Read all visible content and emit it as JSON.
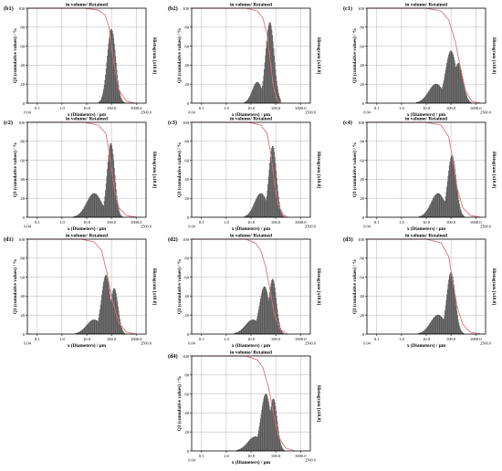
{
  "chart_data": [
    {
      "id": "b1",
      "panel_label": "(b1)",
      "type": "bar",
      "title": "in volume/ Retained",
      "xlabel": "x (Diameters) / µm",
      "ylabel": "Q3 (cumulative values) / %",
      "y2label": "Histogram [x10.0]",
      "x_scale": "log",
      "xlim": [
        0.04,
        2500
      ],
      "ylim": [
        0,
        100
      ],
      "x_ticks": [
        "0.1",
        "1.0",
        "10.0",
        "100.0",
        "1000.0"
      ],
      "x_min_label": "0.04",
      "x_max_label": "2500.0",
      "y_ticks": [
        "0",
        "20",
        "40",
        "60",
        "80",
        "100"
      ],
      "grid": true,
      "histogram": {
        "peaks": [
          {
            "x": 100,
            "h": 78,
            "w": 0.17
          }
        ],
        "xmin": 1.5,
        "xmax": 900
      },
      "cumulative_curve": {
        "points": [
          [
            0.04,
            100
          ],
          [
            8,
            100
          ],
          [
            30,
            98
          ],
          [
            55,
            93
          ],
          [
            80,
            80
          ],
          [
            120,
            45
          ],
          [
            200,
            14
          ],
          [
            400,
            2
          ],
          [
            900,
            0
          ]
        ]
      }
    },
    {
      "id": "b2",
      "panel_label": "(b2)",
      "type": "bar",
      "title": "in volume/ Retained",
      "xlabel": "x (Diameters) / µm",
      "ylabel": "Q3 (cumulative values) / %",
      "y2label": "Histogram [x10.0]",
      "x_scale": "log",
      "xlim": [
        0.04,
        2500
      ],
      "ylim": [
        0,
        100
      ],
      "x_ticks": [
        "0.1",
        "1.0",
        "10.0",
        "100.0",
        "1000.0"
      ],
      "x_min_label": "0.04",
      "x_max_label": "2500.0",
      "y_ticks": [
        "0",
        "20",
        "40",
        "60",
        "80",
        "100"
      ],
      "grid": true,
      "histogram": {
        "peaks": [
          {
            "x": 58,
            "h": 85,
            "w": 0.17
          },
          {
            "x": 18,
            "h": 22,
            "w": 0.2
          }
        ],
        "xmin": 1.5,
        "xmax": 150
      },
      "cumulative_curve": {
        "points": [
          [
            0.04,
            100
          ],
          [
            6,
            100
          ],
          [
            18,
            97
          ],
          [
            30,
            90
          ],
          [
            45,
            72
          ],
          [
            60,
            45
          ],
          [
            80,
            18
          ],
          [
            110,
            4
          ],
          [
            150,
            0
          ]
        ]
      }
    },
    {
      "id": "c1",
      "panel_label": "(c1)",
      "type": "bar",
      "title": "in volume/ Retained",
      "xlabel": "x (Diameters) / µm",
      "ylabel": "Q3 (cumulative values) / %",
      "y2label": "Histogram [x10.0]",
      "x_scale": "log",
      "xlim": [
        0.04,
        2500
      ],
      "ylim": [
        0,
        100
      ],
      "x_ticks": [
        "0.1",
        "1.0",
        "10.0",
        "100.0",
        "1000.0"
      ],
      "x_min_label": "0.04",
      "x_max_label": "2500.0",
      "y_ticks": [
        "0",
        "20",
        "40",
        "60",
        "80",
        "100"
      ],
      "grid": true,
      "histogram": {
        "peaks": [
          {
            "x": 100,
            "h": 55,
            "w": 0.22
          },
          {
            "x": 200,
            "h": 42,
            "w": 0.18
          },
          {
            "x": 25,
            "h": 20,
            "w": 0.3
          }
        ],
        "xmin": 2,
        "xmax": 1500
      },
      "cumulative_curve": {
        "points": [
          [
            0.04,
            100
          ],
          [
            10,
            100
          ],
          [
            40,
            97
          ],
          [
            80,
            88
          ],
          [
            150,
            65
          ],
          [
            250,
            35
          ],
          [
            400,
            12
          ],
          [
            700,
            2
          ],
          [
            1500,
            0
          ]
        ]
      }
    },
    {
      "id": "c2",
      "panel_label": "(c2)",
      "type": "bar",
      "title": "in volume/ Retained",
      "xlabel": "x (Diameters) / µm",
      "ylabel": "Q3 (cumulative values) / %",
      "y2label": "Histogram [x10.0]",
      "x_scale": "log",
      "xlim": [
        0.04,
        2500
      ],
      "ylim": [
        0,
        100
      ],
      "x_ticks": [
        "0.1",
        "1.0",
        "10.0",
        "100.0",
        "1000.0"
      ],
      "x_min_label": "0.04",
      "x_max_label": "2500.0",
      "y_ticks": [
        "0",
        "20",
        "40",
        "60",
        "80",
        "100"
      ],
      "grid": true,
      "histogram": {
        "peaks": [
          {
            "x": 95,
            "h": 78,
            "w": 0.15
          },
          {
            "x": 20,
            "h": 25,
            "w": 0.3
          }
        ],
        "xmin": 1.5,
        "xmax": 1200
      },
      "cumulative_curve": {
        "points": [
          [
            0.04,
            100
          ],
          [
            8,
            100
          ],
          [
            30,
            97
          ],
          [
            60,
            88
          ],
          [
            90,
            62
          ],
          [
            130,
            30
          ],
          [
            200,
            10
          ],
          [
            400,
            2
          ],
          [
            1000,
            0
          ]
        ]
      }
    },
    {
      "id": "c3",
      "panel_label": "(c3)",
      "type": "bar",
      "title": "in volume/ Retained",
      "xlabel": "x (Diameters) / µm",
      "ylabel": "Q3 (cumulative values) / %",
      "y2label": "Histogram [x10.0]",
      "x_scale": "log",
      "xlim": [
        0.04,
        2500
      ],
      "ylim": [
        0,
        100
      ],
      "x_ticks": [
        "0.1",
        "1.0",
        "10.0",
        "100.0",
        "1000.0"
      ],
      "x_min_label": "0.04",
      "x_max_label": "2500.0",
      "y_ticks": [
        "0",
        "20",
        "40",
        "60",
        "80",
        "100"
      ],
      "grid": true,
      "histogram": {
        "peaks": [
          {
            "x": 75,
            "h": 75,
            "w": 0.15
          },
          {
            "x": 25,
            "h": 25,
            "w": 0.25
          }
        ],
        "xmin": 2,
        "xmax": 300
      },
      "cumulative_curve": {
        "points": [
          [
            0.04,
            100
          ],
          [
            8,
            100
          ],
          [
            25,
            97
          ],
          [
            45,
            88
          ],
          [
            65,
            65
          ],
          [
            90,
            35
          ],
          [
            130,
            12
          ],
          [
            200,
            3
          ],
          [
            300,
            0
          ]
        ]
      }
    },
    {
      "id": "c4",
      "panel_label": "(c4)",
      "type": "bar",
      "title": "in volume/ Retained",
      "xlabel": "x (Diameters) / µm",
      "ylabel": "Q3 (cumulative values) / %",
      "y2label": "Histogram [x10.0]",
      "x_scale": "log",
      "xlim": [
        0.04,
        2500
      ],
      "ylim": [
        0,
        100
      ],
      "x_ticks": [
        "0.1",
        "1.0",
        "10.0",
        "100.0",
        "1000.0"
      ],
      "x_min_label": "0.04",
      "x_max_label": "2500.0",
      "y_ticks": [
        "0",
        "20",
        "40",
        "60",
        "80",
        "100"
      ],
      "grid": true,
      "histogram": {
        "peaks": [
          {
            "x": 110,
            "h": 65,
            "w": 0.17
          },
          {
            "x": 30,
            "h": 25,
            "w": 0.28
          }
        ],
        "xmin": 2,
        "xmax": 1500
      },
      "cumulative_curve": {
        "points": [
          [
            0.04,
            100
          ],
          [
            10,
            100
          ],
          [
            40,
            97
          ],
          [
            80,
            85
          ],
          [
            120,
            60
          ],
          [
            180,
            30
          ],
          [
            300,
            10
          ],
          [
            600,
            2
          ],
          [
            1500,
            0
          ]
        ]
      }
    },
    {
      "id": "d1",
      "panel_label": "(d1)",
      "type": "bar",
      "title": "in volume/ Retained",
      "xlabel": "x (Diameters) / µm",
      "ylabel": "Q3 (cumulative values) / %",
      "y2label": "Histogram [x10.0]",
      "x_scale": "log",
      "xlim": [
        0.04,
        2500
      ],
      "ylim": [
        0,
        100
      ],
      "x_ticks": [
        "0.1",
        "1.0",
        "10.0",
        "100.0",
        "1000.0"
      ],
      "x_min_label": "0.04",
      "x_max_label": "2500.0",
      "y_ticks": [
        "0",
        "20",
        "40",
        "60",
        "80",
        "100"
      ],
      "grid": true,
      "histogram": {
        "peaks": [
          {
            "x": 60,
            "h": 62,
            "w": 0.18
          },
          {
            "x": 130,
            "h": 48,
            "w": 0.15
          },
          {
            "x": 20,
            "h": 15,
            "w": 0.3
          }
        ],
        "xmin": 1.5,
        "xmax": 1200
      },
      "cumulative_curve": {
        "points": [
          [
            0.04,
            100
          ],
          [
            6,
            100
          ],
          [
            20,
            97
          ],
          [
            40,
            88
          ],
          [
            65,
            65
          ],
          [
            110,
            35
          ],
          [
            200,
            12
          ],
          [
            400,
            2
          ],
          [
            1000,
            0
          ]
        ]
      }
    },
    {
      "id": "d2",
      "panel_label": "(d2)",
      "type": "bar",
      "title": "in volume/ Retained",
      "xlabel": "x (Diameters) / µm",
      "ylabel": "Q3 (cumulative values) / %",
      "y2label": "Histogram [x10.0]",
      "x_scale": "log",
      "xlim": [
        0.04,
        2500
      ],
      "ylim": [
        0,
        100
      ],
      "x_ticks": [
        "0.1",
        "1.0",
        "10.0",
        "100.0",
        "1000.0"
      ],
      "x_min_label": "0.04",
      "x_max_label": "2500.0",
      "y_ticks": [
        "0",
        "20",
        "40",
        "60",
        "80",
        "100"
      ],
      "grid": true,
      "histogram": {
        "peaks": [
          {
            "x": 35,
            "h": 50,
            "w": 0.2
          },
          {
            "x": 75,
            "h": 58,
            "w": 0.15
          },
          {
            "x": 12,
            "h": 15,
            "w": 0.3
          }
        ],
        "xmin": 1.5,
        "xmax": 400
      },
      "cumulative_curve": {
        "points": [
          [
            0.04,
            100
          ],
          [
            6,
            100
          ],
          [
            15,
            96
          ],
          [
            25,
            88
          ],
          [
            40,
            70
          ],
          [
            60,
            45
          ],
          [
            90,
            20
          ],
          [
            150,
            5
          ],
          [
            300,
            0
          ]
        ]
      }
    },
    {
      "id": "d3",
      "panel_label": "(d3)",
      "type": "bar",
      "title": "in volume/ Retained",
      "xlabel": "x (Diameters) / µm",
      "ylabel": "Q3 (cumulative values) / %",
      "y2label": "Histogram [x10.0]",
      "x_scale": "log",
      "xlim": [
        0.04,
        2500
      ],
      "ylim": [
        0,
        100
      ],
      "x_ticks": [
        "0.1",
        "1.0",
        "10.0",
        "100.0",
        "1000.0"
      ],
      "x_min_label": "0.04",
      "x_max_label": "2500.0",
      "y_ticks": [
        "0",
        "20",
        "40",
        "60",
        "80",
        "100"
      ],
      "grid": true,
      "histogram": {
        "peaks": [
          {
            "x": 100,
            "h": 65,
            "w": 0.17
          },
          {
            "x": 30,
            "h": 20,
            "w": 0.3
          }
        ],
        "xmin": 2,
        "xmax": 1500
      },
      "cumulative_curve": {
        "points": [
          [
            0.04,
            100
          ],
          [
            10,
            100
          ],
          [
            40,
            96
          ],
          [
            80,
            82
          ],
          [
            120,
            55
          ],
          [
            180,
            28
          ],
          [
            300,
            10
          ],
          [
            600,
            2
          ],
          [
            1500,
            0
          ]
        ]
      }
    },
    {
      "id": "d4",
      "panel_label": "(d4)",
      "type": "bar",
      "title": "in volume/ Retained",
      "xlabel": "x (Diameters) / µm",
      "ylabel": "Q3 (cumulative values) / %",
      "y2label": "Histogram [x10.0]",
      "x_scale": "log",
      "xlim": [
        0.04,
        2500
      ],
      "ylim": [
        0,
        100
      ],
      "x_ticks": [
        "0.1",
        "1.0",
        "10.0",
        "100.0",
        "1000.0"
      ],
      "x_min_label": "0.04",
      "x_max_label": "2500.0",
      "y_ticks": [
        "0",
        "20",
        "40",
        "60",
        "80",
        "100"
      ],
      "grid": true,
      "histogram": {
        "peaks": [
          {
            "x": 40,
            "h": 60,
            "w": 0.2
          },
          {
            "x": 80,
            "h": 55,
            "w": 0.15
          },
          {
            "x": 15,
            "h": 15,
            "w": 0.3
          }
        ],
        "xmin": 1.5,
        "xmax": 800
      },
      "cumulative_curve": {
        "points": [
          [
            0.04,
            100
          ],
          [
            6,
            100
          ],
          [
            18,
            96
          ],
          [
            30,
            88
          ],
          [
            50,
            68
          ],
          [
            80,
            40
          ],
          [
            130,
            15
          ],
          [
            250,
            3
          ],
          [
            600,
            0
          ]
        ]
      }
    }
  ],
  "colors": {
    "bar_fill": "#a9a9a9",
    "bar_stroke": "#3a3a3a",
    "curve": "#e0707a",
    "axis": "#000000",
    "grid": "#b5b5b5"
  }
}
